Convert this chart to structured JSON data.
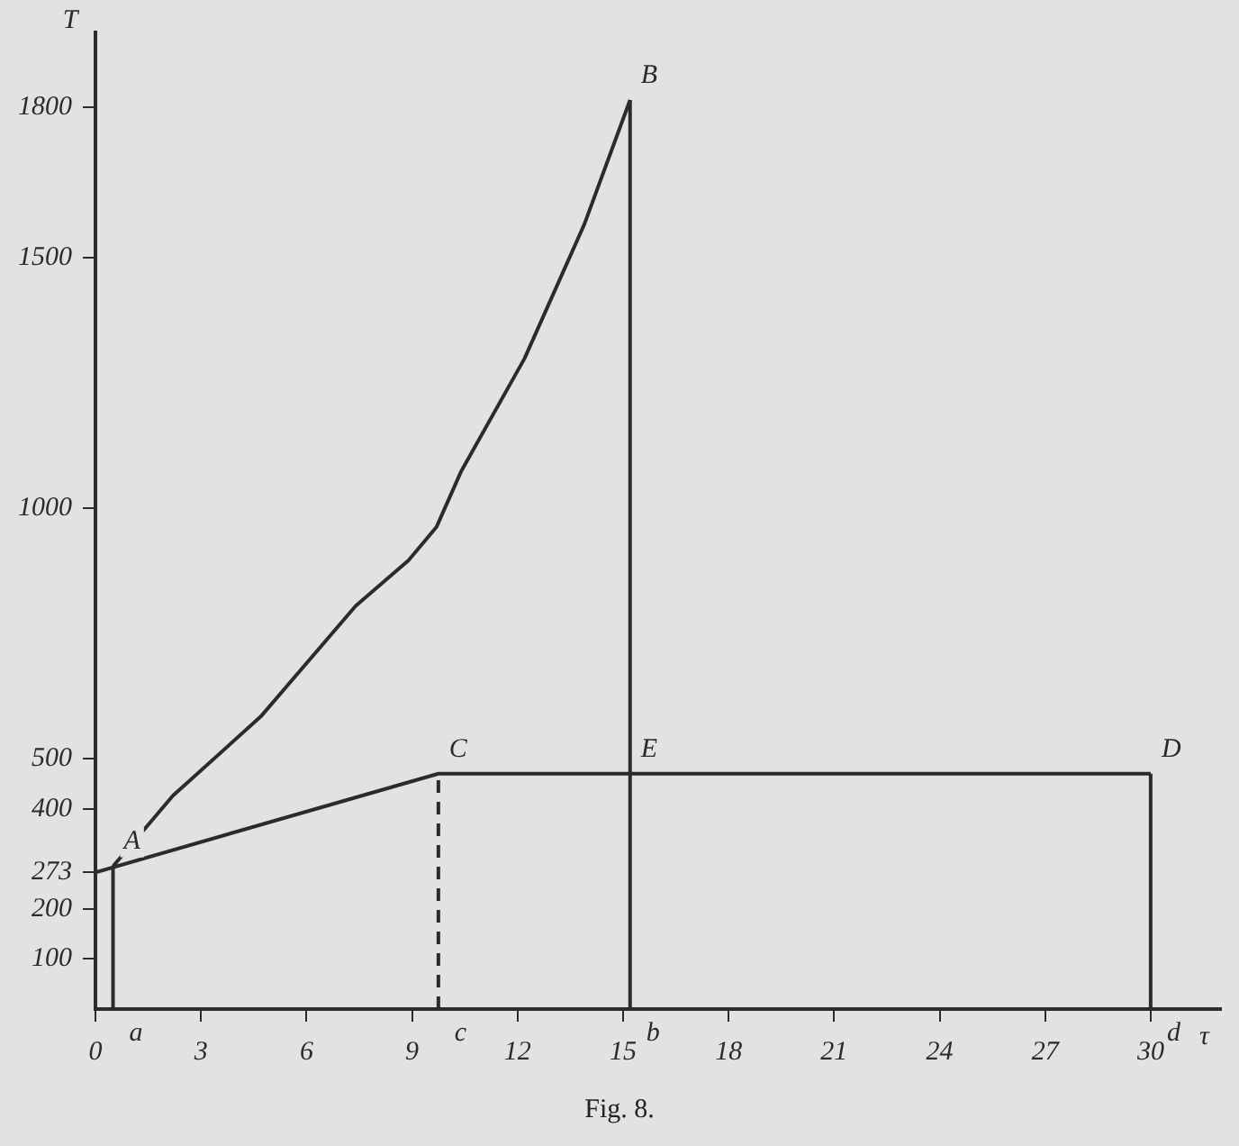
{
  "chart_data": {
    "type": "line",
    "xlabel": "τ",
    "ylabel": "T",
    "xlim": [
      0,
      32
    ],
    "ylim": [
      0,
      1950
    ],
    "xticks": [
      0,
      3,
      6,
      9,
      12,
      15,
      18,
      21,
      24,
      27,
      30
    ],
    "yticks": [
      100,
      200,
      273,
      400,
      500,
      1000,
      1500,
      1800
    ],
    "grid": false,
    "legend": false,
    "marker": "none",
    "series": [
      {
        "color": "#2b2b2b",
        "line_style": "solid",
        "x": [
          0.5,
          2.2,
          4.7,
          7.4,
          8.9,
          9.7,
          10.4,
          12.2,
          13.9,
          15.2
        ],
        "values": [
          285,
          426,
          584,
          805,
          896,
          963,
          1074,
          1299,
          1567,
          1815
        ]
      },
      {
        "color": "#2b2b2b",
        "line_style": "solid",
        "x": [
          0,
          9.75,
          30
        ],
        "values": [
          273,
          470,
          470
        ]
      },
      {
        "color": "#2b2b2b",
        "line_style": "solid",
        "x": [
          0.5,
          0.5
        ],
        "values": [
          0,
          285
        ]
      },
      {
        "color": "#2b2b2b",
        "line_style": "dashed",
        "x": [
          9.75,
          9.75
        ],
        "values": [
          0,
          470
        ]
      },
      {
        "color": "#2b2b2b",
        "line_style": "solid",
        "x": [
          15.2,
          15.2
        ],
        "values": [
          0,
          1815
        ]
      },
      {
        "color": "#2b2b2b",
        "line_style": "solid",
        "x": [
          30,
          30
        ],
        "values": [
          0,
          470
        ]
      }
    ],
    "annotations": [
      {
        "text": "A",
        "x": 0.5,
        "y": 285
      },
      {
        "text": "B",
        "x": 15.2,
        "y": 1815
      },
      {
        "text": "C",
        "x": 9.75,
        "y": 470
      },
      {
        "text": "D",
        "x": 30,
        "y": 470
      },
      {
        "text": "E",
        "x": 15.2,
        "y": 470
      },
      {
        "text": "a",
        "x": 0.5,
        "y": 0
      },
      {
        "text": "c",
        "x": 9.75,
        "y": 0
      },
      {
        "text": "b",
        "x": 15.2,
        "y": 0
      },
      {
        "text": "d",
        "x": 30,
        "y": 0
      },
      "Fig. 8."
    ]
  }
}
